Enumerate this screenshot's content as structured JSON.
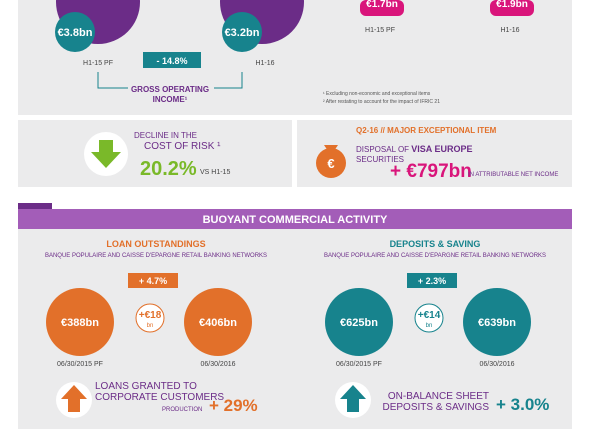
{
  "top": {
    "left": {
      "v1": "€3.8bn",
      "v2": "€3.2bn",
      "l1": "H1-15 PF",
      "l2": "H1-16",
      "badge": "- 14.8%",
      "title1": "GROSS OPERATING",
      "title2": "INCOME¹"
    },
    "right": {
      "v1": "€1.7bn",
      "v2": "€1.9bn",
      "l1": "H1-15 PF",
      "l2": "H1-16"
    },
    "notes": [
      "¹ Excluding non-economic and exceptional items",
      "² After restating to account for the impact of IFRIC 21"
    ]
  },
  "risk": {
    "line1": "DECLINE IN THE",
    "line2": "COST OF RISK ¹",
    "value": "20.2%",
    "vs": "VS H1-15"
  },
  "exceptional": {
    "title": "Q2-16 // MAJOR EXCEPTIONAL ITEM",
    "line1a": "DISPOSAL OF ",
    "line1b": "VISA EUROPE",
    "line2": "SECURITIES",
    "value": "+ €797bn",
    "suffix": "IN ATTRIBUTABLE NET INCOME"
  },
  "banner": "BUOYANT COMMERCIAL ACTIVITY",
  "loans": {
    "title": "LOAN OUTSTANDINGS",
    "subtitle": "BANQUE POPULAIRE AND CAISSE D'EPARGNE RETAIL BANKING NETWORKS",
    "badge": "+ 4.7%",
    "v1": "€388bn",
    "v2": "€406bn",
    "delta": "+€18",
    "unit": "bn",
    "d1": "06/30/2015 PF",
    "d2": "06/30/2016",
    "foot1": "LOANS GRANTED TO",
    "foot2": "CORPORATE CUSTOMERS",
    "foot3": "PRODUCTION",
    "footv": "+ 29%"
  },
  "deposits": {
    "title": "DEPOSITS & SAVING",
    "subtitle": "BANQUE POPULAIRE AND CAISSE D'EPARGNE RETAIL BANKING NETWORKS",
    "badge": "+ 2.3%",
    "v1": "€625bn",
    "v2": "€639bn",
    "delta": "+€14",
    "unit": "bn",
    "d1": "06/30/2015 PF",
    "d2": "06/30/2016",
    "foot1": "ON-BALANCE SHEET",
    "foot2": "DEPOSITS & SAVINGS",
    "footv": "+ 3.0%"
  }
}
